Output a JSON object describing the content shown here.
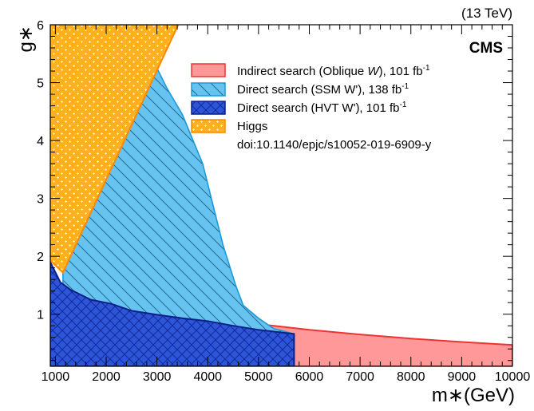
{
  "energy_label": "(13 TeV)",
  "experiment_label": "CMS",
  "doi_text": "doi:10.1140/epjc/s10052-019-6909-y",
  "colors": {
    "oblique": "#ff9999",
    "oblique_edge": "#ee3333",
    "ssm": "#66c2ee",
    "ssm_edge": "#1a9ad8",
    "hvt": "#2e55d8",
    "hvt_edge": "#0a1f8a",
    "higgs": "#ffb020",
    "higgs_edge": "#ff8800"
  },
  "chart_data": {
    "type": "area",
    "xlabel": "m∗(GeV)",
    "ylabel": "g∗",
    "xlim": [
      900,
      10000
    ],
    "ylim": [
      0.1,
      6
    ],
    "grid": false,
    "legend_position": "top-right",
    "x_ticks": [
      "1000",
      "2000",
      "3000",
      "4000",
      "5000",
      "6000",
      "7000",
      "8000",
      "9000",
      "10000"
    ],
    "y_ticks": [
      "1",
      "2",
      "3",
      "4",
      "5",
      "6"
    ],
    "series": [
      {
        "name": "Indirect search (Oblique W), 101 fb-1",
        "legend_main": "Indirect search (Oblique ",
        "legend_italic": "W",
        "legend_tail": "), 101 fb",
        "legend_sup": "-1",
        "boundary": [
          [
            5200,
            0.81
          ],
          [
            6000,
            0.73
          ],
          [
            7000,
            0.65
          ],
          [
            8000,
            0.58
          ],
          [
            9000,
            0.52
          ],
          [
            10000,
            0.47
          ]
        ]
      },
      {
        "name": "Direct search (SSM W'), 138 fb-1",
        "legend_main": "Direct search (SSM W'), 138 fb",
        "legend_sup": "-1",
        "boundary": [
          [
            1150,
            1.9
          ],
          [
            1500,
            2.8
          ],
          [
            2000,
            3.85
          ],
          [
            2500,
            4.75
          ],
          [
            2950,
            5.35
          ],
          [
            3000,
            5.25
          ],
          [
            3200,
            4.9
          ],
          [
            3500,
            4.45
          ],
          [
            3900,
            3.6
          ],
          [
            4300,
            2.2
          ],
          [
            4550,
            1.5
          ],
          [
            4700,
            1.15
          ],
          [
            5000,
            0.93
          ],
          [
            5300,
            0.75
          ],
          [
            5700,
            0.66
          ]
        ]
      },
      {
        "name": "Direct search (HVT W'), 101 fb-1",
        "legend_main": "Direct search (HVT W'), 101 fb",
        "legend_sup": "-1",
        "boundary": [
          [
            900,
            1.9
          ],
          [
            1100,
            1.55
          ],
          [
            1300,
            1.42
          ],
          [
            1700,
            1.25
          ],
          [
            2100,
            1.18
          ],
          [
            2500,
            1.06
          ],
          [
            3000,
            0.99
          ],
          [
            3500,
            0.93
          ],
          [
            4000,
            0.88
          ],
          [
            4500,
            0.8
          ],
          [
            5000,
            0.73
          ],
          [
            5700,
            0.66
          ]
        ]
      },
      {
        "name": "Higgs",
        "legend_main": "Higgs",
        "boundary": [
          [
            900,
            1.93
          ],
          [
            1150,
            1.72
          ],
          [
            3420,
            6.0
          ]
        ]
      }
    ]
  }
}
